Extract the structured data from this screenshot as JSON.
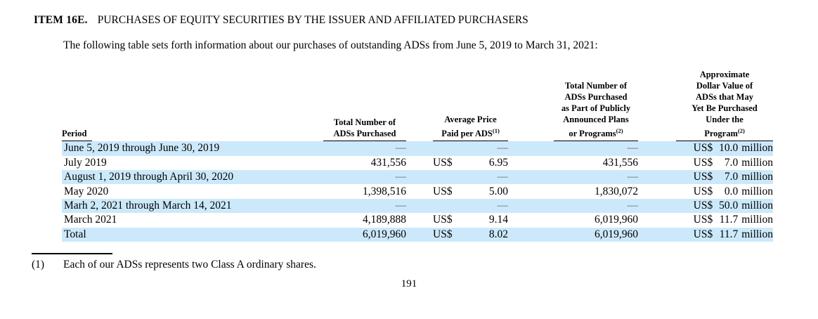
{
  "document": {
    "item_label": "ITEM 16E.",
    "item_title": "PURCHASES OF EQUITY SECURITIES BY THE ISSUER AND AFFILIATED PURCHASERS",
    "intro": "The following table sets forth information about our purchases of outstanding ADSs from June 5, 2019 to March 31, 2021:",
    "footnote": {
      "marker": "(1)",
      "text": "Each of our ADSs represents two Class A ordinary shares."
    },
    "page_number": "191",
    "highlight_color": "#cce9fb"
  },
  "table": {
    "headers": {
      "period": "Period",
      "total_purchased": "Total Number of\nADSs Purchased",
      "avg_price": "Average Price\nPaid per ADS",
      "avg_price_note": "(1)",
      "plans": "Total Number of\nADSs Purchased\nas Part of Publicly\nAnnounced Plans\nor Programs",
      "plans_note": "(2)",
      "approx_value": "Approximate\nDollar Value of\nADSs that May\nYet Be Purchased\nUnder the\nProgram",
      "approx_value_note": "(2)"
    },
    "rows": [
      {
        "period": "June 5, 2019 through June 30, 2019",
        "total": "—",
        "cur": "",
        "price": "—",
        "plans": "—",
        "acur": "US$",
        "aamt": "10.0",
        "aunit": "million"
      },
      {
        "period": "July 2019",
        "total": "431,556",
        "cur": "US$",
        "price": "6.95",
        "plans": "431,556",
        "acur": "US$",
        "aamt": "7.0",
        "aunit": "million"
      },
      {
        "period": "August 1, 2019 through April 30, 2020",
        "total": "—",
        "cur": "",
        "price": "—",
        "plans": "—",
        "acur": "US$",
        "aamt": "7.0",
        "aunit": "million"
      },
      {
        "period": "May 2020",
        "total": "1,398,516",
        "cur": "US$",
        "price": "5.00",
        "plans": "1,830,072",
        "acur": "US$",
        "aamt": "0.0",
        "aunit": "million"
      },
      {
        "period": "Marh 2, 2021 through March 14, 2021",
        "total": "—",
        "cur": "",
        "price": "—",
        "plans": "—",
        "acur": "US$",
        "aamt": "50.0",
        "aunit": "million"
      },
      {
        "period": "March 2021",
        "total": "4,189,888",
        "cur": "US$",
        "price": "9.14",
        "plans": "6,019,960",
        "acur": "US$",
        "aamt": "11.7",
        "aunit": "million"
      },
      {
        "period": "Total",
        "total": "6,019,960",
        "cur": "US$",
        "price": "8.02",
        "plans": "6,019,960",
        "acur": "US$",
        "aamt": "11.7",
        "aunit": "million"
      }
    ]
  }
}
